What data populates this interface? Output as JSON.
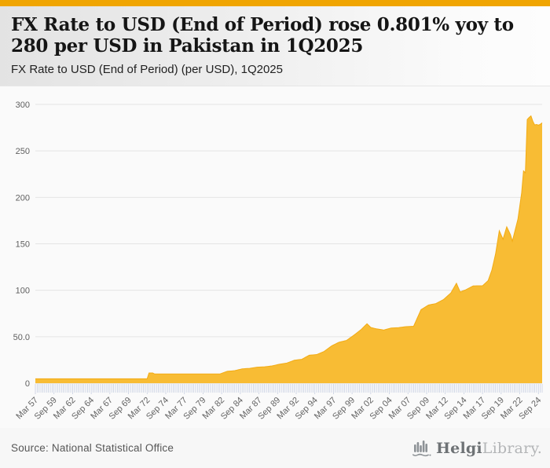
{
  "meta": {
    "accent_color": "#F0A502",
    "area_color": "#F8BC34",
    "area_edge_color": "#F2AB14",
    "grid_color": "#e4e4e4",
    "tick_color": "#c7cfe2",
    "axis_label_color": "#5f5f5f",
    "background_color": "#fafafa"
  },
  "header": {
    "title": "FX Rate to USD (End of Period) rose 0.801% yoy to 280 per USD in Pakistan in 1Q2025",
    "subtitle": "FX Rate to USD (End of Period) (per USD), 1Q2025"
  },
  "chart_data": {
    "type": "area",
    "title": "FX Rate to USD (End of Period) (per USD), 1Q2025",
    "series_name": "FX Rate to USD (End of Period), Pakistan",
    "unit": "per USD",
    "frequency": "quarterly",
    "x_start": "Mar 1957",
    "x_end": "Mar 2025",
    "n_points": 273,
    "ylim": [
      0,
      300
    ],
    "grid": true,
    "legend": false,
    "y_tick_labels": [
      "0",
      "50.0",
      "100",
      "150",
      "200",
      "250",
      "300"
    ],
    "y_tick_values": [
      0,
      50,
      100,
      150,
      200,
      250,
      300
    ],
    "x_tick_every_n_quarters": 10,
    "x_tick_labels": [
      "Mar 57",
      "Sep 59",
      "Mar 62",
      "Sep 64",
      "Mar 67",
      "Sep 69",
      "Mar 72",
      "Sep 74",
      "Mar 77",
      "Sep 79",
      "Mar 82",
      "Sep 84",
      "Mar 87",
      "Sep 89",
      "Mar 92",
      "Sep 94",
      "Mar 97",
      "Sep 99",
      "Mar 02",
      "Sep 04",
      "Mar 07",
      "Sep 09",
      "Mar 12",
      "Sep 14",
      "Mar 17",
      "Sep 19",
      "Mar 22",
      "Sep 24"
    ],
    "interpolation": "linear",
    "anchors": [
      {
        "t": "1957Q1",
        "v": 4.76
      },
      {
        "t": "1971Q4",
        "v": 4.76
      },
      {
        "t": "1972Q1",
        "v": 4.76
      },
      {
        "t": "1972Q2",
        "v": 11.0
      },
      {
        "t": "1972Q4",
        "v": 11.0
      },
      {
        "t": "1973Q1",
        "v": 9.9
      },
      {
        "t": "1981Q4",
        "v": 9.9
      },
      {
        "t": "1982Q4",
        "v": 12.8
      },
      {
        "t": "1983Q4",
        "v": 13.5
      },
      {
        "t": "1984Q4",
        "v": 15.4
      },
      {
        "t": "1985Q4",
        "v": 16.0
      },
      {
        "t": "1986Q4",
        "v": 17.2
      },
      {
        "t": "1987Q4",
        "v": 17.6
      },
      {
        "t": "1988Q4",
        "v": 18.6
      },
      {
        "t": "1989Q4",
        "v": 20.4
      },
      {
        "t": "1990Q4",
        "v": 21.7
      },
      {
        "t": "1991Q4",
        "v": 24.7
      },
      {
        "t": "1992Q4",
        "v": 25.7
      },
      {
        "t": "1993Q4",
        "v": 30.1
      },
      {
        "t": "1994Q4",
        "v": 30.8
      },
      {
        "t": "1995Q4",
        "v": 34.2
      },
      {
        "t": "1996Q4",
        "v": 40.1
      },
      {
        "t": "1997Q4",
        "v": 44.1
      },
      {
        "t": "1998Q4",
        "v": 46.0
      },
      {
        "t": "1999Q4",
        "v": 51.7
      },
      {
        "t": "2000Q4",
        "v": 58.0
      },
      {
        "t": "2001Q3",
        "v": 64.0
      },
      {
        "t": "2002Q1",
        "v": 60.0
      },
      {
        "t": "2002Q4",
        "v": 58.5
      },
      {
        "t": "2003Q4",
        "v": 57.2
      },
      {
        "t": "2004Q4",
        "v": 59.4
      },
      {
        "t": "2005Q4",
        "v": 59.8
      },
      {
        "t": "2006Q4",
        "v": 60.9
      },
      {
        "t": "2007Q4",
        "v": 61.2
      },
      {
        "t": "2008Q4",
        "v": 79.1
      },
      {
        "t": "2009Q4",
        "v": 84.1
      },
      {
        "t": "2010Q4",
        "v": 85.7
      },
      {
        "t": "2011Q4",
        "v": 89.9
      },
      {
        "t": "2012Q4",
        "v": 97.1
      },
      {
        "t": "2013Q3",
        "v": 107.5
      },
      {
        "t": "2014Q1",
        "v": 98.2
      },
      {
        "t": "2014Q4",
        "v": 100.5
      },
      {
        "t": "2015Q4",
        "v": 104.7
      },
      {
        "t": "2016Q4",
        "v": 104.8
      },
      {
        "t": "2017Q1",
        "v": 104.8
      },
      {
        "t": "2017Q4",
        "v": 110.4
      },
      {
        "t": "2018Q2",
        "v": 121.5
      },
      {
        "t": "2018Q4",
        "v": 139.1
      },
      {
        "t": "2019Q2",
        "v": 164.0
      },
      {
        "t": "2019Q4",
        "v": 154.9
      },
      {
        "t": "2020Q2",
        "v": 168.3
      },
      {
        "t": "2020Q4",
        "v": 159.8
      },
      {
        "t": "2021Q1",
        "v": 152.8
      },
      {
        "t": "2021Q4",
        "v": 176.5
      },
      {
        "t": "2022Q2",
        "v": 204.8
      },
      {
        "t": "2022Q3",
        "v": 228.5
      },
      {
        "t": "2022Q4",
        "v": 226.4
      },
      {
        "t": "2023Q1",
        "v": 283.8
      },
      {
        "t": "2023Q2",
        "v": 286.0
      },
      {
        "t": "2023Q3",
        "v": 287.7
      },
      {
        "t": "2023Q4",
        "v": 281.9
      },
      {
        "t": "2024Q1",
        "v": 277.9
      },
      {
        "t": "2024Q2",
        "v": 278.4
      },
      {
        "t": "2024Q3",
        "v": 277.7
      },
      {
        "t": "2024Q4",
        "v": 278.6
      },
      {
        "t": "2025Q1",
        "v": 280.2
      }
    ],
    "latest_value": 280,
    "latest_period": "1Q2025",
    "yoy_change_pct": 0.801
  },
  "footer": {
    "source": "Source: National Statistical Office",
    "logo": {
      "brand_primary": "Helgi",
      "brand_secondary": "Library."
    }
  }
}
